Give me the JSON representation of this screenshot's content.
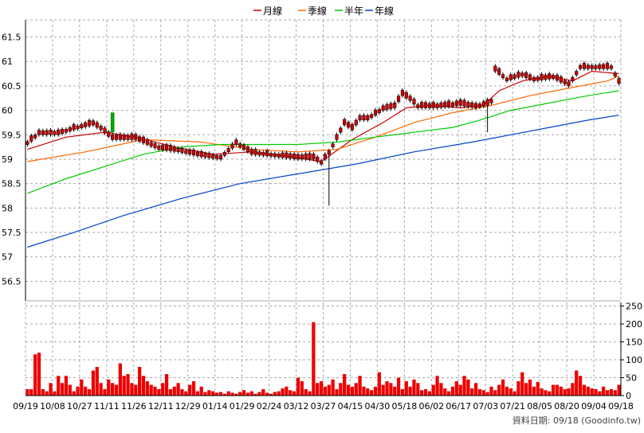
{
  "legend": [
    {
      "label": "月線",
      "color": "#cc0000"
    },
    {
      "label": "季線",
      "color": "#ff6600"
    },
    {
      "label": "半年",
      "color": "#00cc00"
    },
    {
      "label": "年線",
      "color": "#0044cc"
    }
  ],
  "footer": "資料日期: 09/18  (Goodinfo.tw)",
  "chart_data": [
    {
      "type": "candlestick",
      "x_tick_labels": [
        "09/19",
        "10/08",
        "10/27",
        "11/11",
        "11/26",
        "12/11",
        "12/29",
        "01/14",
        "01/29",
        "02/24",
        "03/12",
        "03/27",
        "04/15",
        "04/30",
        "05/18",
        "06/02",
        "06/17",
        "07/03",
        "07/21",
        "08/05",
        "08/20",
        "09/04",
        "09/18"
      ],
      "y_ticks": [
        "56.5",
        "57",
        "57.5",
        "58",
        "58.5",
        "59",
        "59.5",
        "60",
        "60.5",
        "61",
        "61.5"
      ],
      "ylim": [
        56.1,
        61.85
      ],
      "grid": true,
      "up_color": "#00aa00",
      "down_color": "#cc0000",
      "close_path": [
        [
          0,
          59.3
        ],
        [
          3,
          59.5
        ],
        [
          8,
          59.5
        ],
        [
          12,
          59.6
        ],
        [
          17,
          59.7
        ],
        [
          19,
          59.6
        ],
        [
          22,
          59.4
        ],
        [
          28,
          59.4
        ],
        [
          34,
          59.2
        ],
        [
          39,
          59.15
        ],
        [
          45,
          59.05
        ],
        [
          50,
          59.0
        ],
        [
          54,
          59.3
        ],
        [
          58,
          59.1
        ],
        [
          64,
          59.05
        ],
        [
          70,
          59.0
        ],
        [
          74,
          59.0
        ],
        [
          76,
          58.9
        ],
        [
          78,
          59.1
        ],
        [
          80,
          59.4
        ],
        [
          82,
          59.7
        ],
        [
          84,
          59.6
        ],
        [
          86,
          59.8
        ],
        [
          88,
          59.8
        ],
        [
          92,
          60.0
        ],
        [
          95,
          60.05
        ],
        [
          97,
          60.3
        ],
        [
          99,
          60.2
        ],
        [
          101,
          60.05
        ],
        [
          106,
          60.05
        ],
        [
          112,
          60.1
        ],
        [
          116,
          60.05
        ],
        [
          119,
          60.1
        ],
        [
          120,
          60.15
        ],
        [
          121,
          60.8
        ],
        [
          124,
          60.6
        ],
        [
          128,
          60.7
        ],
        [
          131,
          60.6
        ],
        [
          136,
          60.65
        ],
        [
          140,
          60.5
        ],
        [
          141,
          60.6
        ],
        [
          143,
          60.85
        ],
        [
          148,
          60.85
        ],
        [
          151,
          60.85
        ],
        [
          153,
          60.55
        ]
      ],
      "moving_averages": [
        {
          "name": "月線",
          "color": "#cc0000",
          "values": [
            [
              0,
              59.2
            ],
            [
              10,
              59.45
            ],
            [
              20,
              59.55
            ],
            [
              28,
              59.45
            ],
            [
              38,
              59.25
            ],
            [
              48,
              59.1
            ],
            [
              58,
              59.15
            ],
            [
              68,
              59.05
            ],
            [
              76,
              58.95
            ],
            [
              84,
              59.4
            ],
            [
              92,
              59.75
            ],
            [
              98,
              60.05
            ],
            [
              104,
              60.1
            ],
            [
              112,
              60.05
            ],
            [
              118,
              60.1
            ],
            [
              122,
              60.4
            ],
            [
              128,
              60.6
            ],
            [
              135,
              60.7
            ],
            [
              141,
              60.6
            ],
            [
              146,
              60.8
            ],
            [
              153,
              60.75
            ]
          ]
        },
        {
          "name": "季線",
          "color": "#ff6600",
          "values": [
            [
              0,
              58.95
            ],
            [
              15,
              59.15
            ],
            [
              30,
              59.4
            ],
            [
              45,
              59.35
            ],
            [
              58,
              59.2
            ],
            [
              70,
              59.15
            ],
            [
              80,
              59.2
            ],
            [
              90,
              59.45
            ],
            [
              100,
              59.75
            ],
            [
              110,
              59.95
            ],
            [
              120,
              60.1
            ],
            [
              130,
              60.3
            ],
            [
              140,
              60.45
            ],
            [
              150,
              60.6
            ],
            [
              153,
              60.7
            ]
          ]
        },
        {
          "name": "半年",
          "color": "#00cc00",
          "values": [
            [
              0,
              58.3
            ],
            [
              10,
              58.6
            ],
            [
              20,
              58.85
            ],
            [
              30,
              59.1
            ],
            [
              40,
              59.25
            ],
            [
              50,
              59.3
            ],
            [
              60,
              59.3
            ],
            [
              70,
              59.3
            ],
            [
              80,
              59.35
            ],
            [
              90,
              59.45
            ],
            [
              100,
              59.55
            ],
            [
              110,
              59.65
            ],
            [
              117,
              59.8
            ],
            [
              125,
              60.0
            ],
            [
              135,
              60.15
            ],
            [
              145,
              60.3
            ],
            [
              153,
              60.4
            ]
          ]
        },
        {
          "name": "年線",
          "color": "#0044cc",
          "values": [
            [
              0,
              57.2
            ],
            [
              12,
              57.5
            ],
            [
              25,
              57.85
            ],
            [
              40,
              58.2
            ],
            [
              55,
              58.5
            ],
            [
              70,
              58.7
            ],
            [
              85,
              58.9
            ],
            [
              100,
              59.15
            ],
            [
              115,
              59.35
            ],
            [
              125,
              59.5
            ],
            [
              135,
              59.65
            ],
            [
              145,
              59.8
            ],
            [
              153,
              59.9
            ]
          ]
        }
      ],
      "wicks": [
        {
          "x": 78,
          "high": 59.1,
          "low": 58.05
        },
        {
          "x": 119,
          "high": 60.1,
          "low": 59.55
        }
      ]
    },
    {
      "type": "bar",
      "y_ticks": [
        "0",
        "50",
        "100",
        "150",
        "200",
        "250"
      ],
      "ylim": [
        0,
        260
      ],
      "color": "#ee0000",
      "values": [
        18,
        18,
        115,
        120,
        18,
        12,
        35,
        12,
        55,
        35,
        55,
        30,
        12,
        25,
        45,
        25,
        18,
        70,
        80,
        35,
        18,
        45,
        35,
        30,
        90,
        55,
        60,
        35,
        30,
        80,
        55,
        40,
        30,
        25,
        18,
        35,
        60,
        18,
        25,
        35,
        18,
        12,
        30,
        40,
        12,
        25,
        10,
        15,
        12,
        8,
        10,
        5,
        12,
        8,
        5,
        10,
        15,
        8,
        12,
        5,
        10,
        18,
        8,
        5,
        10,
        12,
        20,
        25,
        15,
        12,
        50,
        40,
        18,
        12,
        205,
        35,
        40,
        25,
        30,
        45,
        18,
        35,
        60,
        30,
        25,
        35,
        55,
        25,
        20,
        15,
        25,
        65,
        30,
        40,
        35,
        25,
        50,
        18,
        40,
        25,
        45,
        35,
        15,
        18,
        12,
        30,
        55,
        35,
        20,
        12,
        25,
        40,
        30,
        55,
        45,
        20,
        35,
        18,
        15,
        10,
        25,
        15,
        30,
        45,
        25,
        20,
        12,
        40,
        65,
        35,
        45,
        25,
        38,
        20,
        15,
        12,
        30,
        30,
        25,
        18,
        20,
        35,
        70,
        55,
        30,
        25,
        20,
        18,
        12,
        25,
        15,
        18,
        15,
        30
      ]
    }
  ]
}
